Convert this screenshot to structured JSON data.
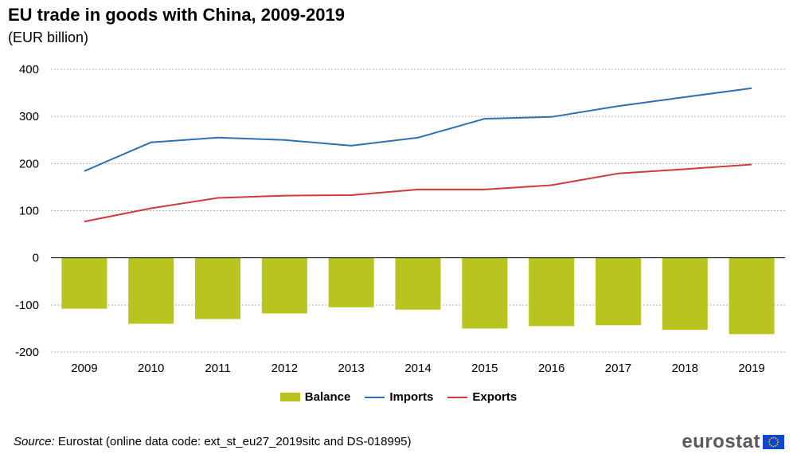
{
  "title": "EU trade in goods with China, 2009-2019",
  "subtitle": "(EUR billion)",
  "legend": {
    "balance": "Balance",
    "imports": "Imports",
    "exports": "Exports"
  },
  "source": {
    "label": "Source:",
    "text": " Eurostat (online data code: ext_st_eu27_2019sitc and DS-018995)"
  },
  "logo": {
    "text": "eurostat",
    "flag_icon": "eu-flag-icon"
  },
  "colors": {
    "balance": "#b9c41e",
    "imports": "#2e6fb0",
    "exports": "#d03a3a",
    "grid": "#b4b4b4",
    "logo_flag": "#0e47cb",
    "logo_stars": "#ffd617"
  },
  "chart_data": {
    "type": "bar",
    "categories": [
      "2009",
      "2010",
      "2011",
      "2012",
      "2013",
      "2014",
      "2015",
      "2016",
      "2017",
      "2018",
      "2019"
    ],
    "series": [
      {
        "name": "Balance",
        "type": "bar",
        "values": [
          -108,
          -140,
          -130,
          -118,
          -105,
          -110,
          -150,
          -145,
          -143,
          -153,
          -162
        ]
      },
      {
        "name": "Imports",
        "type": "line",
        "values": [
          184,
          245,
          255,
          250,
          238,
          255,
          295,
          299,
          322,
          341,
          360
        ]
      },
      {
        "name": "Exports",
        "type": "line",
        "values": [
          77,
          105,
          127,
          132,
          133,
          145,
          145,
          154,
          179,
          188,
          198
        ]
      }
    ],
    "yticks": [
      400,
      300,
      200,
      100,
      0,
      -100,
      -200
    ],
    "ylim": [
      -200,
      400
    ],
    "grid": true,
    "legend_position": "bottom"
  }
}
